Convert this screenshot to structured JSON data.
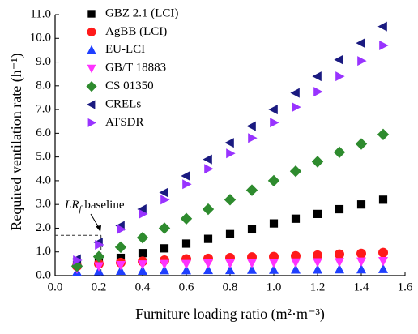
{
  "chart_data": {
    "type": "scatter",
    "x_label": "Furniture loading ratio (m²·m⁻³)",
    "y_label": "Required ventilation rate (h⁻¹)",
    "x": [
      0.1,
      0.2,
      0.3,
      0.4,
      0.5,
      0.6,
      0.7,
      0.8,
      0.9,
      1.0,
      1.1,
      1.2,
      1.3,
      1.4,
      1.5
    ],
    "series": [
      {
        "name": "GBZ 2.1 (LCI)",
        "color": "#000000",
        "marker": "square",
        "values": [
          0.45,
          0.6,
          0.75,
          0.95,
          1.15,
          1.35,
          1.55,
          1.75,
          1.95,
          2.2,
          2.4,
          2.6,
          2.8,
          3.0,
          3.2
        ]
      },
      {
        "name": "AgBB (LCI)",
        "color": "#ff1a1a",
        "marker": "circle",
        "values": [
          0.4,
          0.5,
          0.55,
          0.6,
          0.65,
          0.7,
          0.72,
          0.75,
          0.78,
          0.8,
          0.83,
          0.86,
          0.9,
          0.93,
          0.97
        ]
      },
      {
        "name": "EU-LCI",
        "color": "#1f3fff",
        "marker": "triangle-up",
        "values": [
          0.15,
          0.18,
          0.2,
          0.2,
          0.22,
          0.22,
          0.23,
          0.23,
          0.24,
          0.24,
          0.25,
          0.25,
          0.26,
          0.26,
          0.27
        ]
      },
      {
        "name": "GB/T 18883",
        "color": "#ff33ff",
        "marker": "triangle-down",
        "values": [
          0.3,
          0.4,
          0.45,
          0.48,
          0.5,
          0.5,
          0.52,
          0.53,
          0.54,
          0.55,
          0.56,
          0.57,
          0.58,
          0.6,
          0.62
        ]
      },
      {
        "name": "CS 01350",
        "color": "#2e8b2e",
        "marker": "diamond",
        "values": [
          0.4,
          0.8,
          1.2,
          1.6,
          2.0,
          2.4,
          2.8,
          3.2,
          3.6,
          4.0,
          4.4,
          4.8,
          5.2,
          5.55,
          5.95
        ]
      },
      {
        "name": "CRELs",
        "color": "#1a1a80",
        "marker": "triangle-left",
        "values": [
          0.7,
          1.4,
          2.1,
          2.8,
          3.5,
          4.2,
          4.9,
          5.6,
          6.3,
          7.0,
          7.7,
          8.4,
          9.1,
          9.8,
          10.5
        ]
      },
      {
        "name": "ATSDR",
        "color": "#9933ff",
        "marker": "triangle-right",
        "values": [
          0.65,
          1.3,
          1.95,
          2.6,
          3.2,
          3.85,
          4.5,
          5.15,
          5.8,
          6.45,
          7.1,
          7.75,
          8.4,
          9.05,
          9.7
        ]
      }
    ],
    "xlim": [
      0,
      1.6
    ],
    "ylim": [
      0,
      11
    ],
    "xticks": [
      {
        "value": 0,
        "label": "0.0"
      },
      0.2,
      0.4,
      0.6,
      0.8,
      {
        "value": 1,
        "label": "1.0"
      },
      1.2,
      1.4,
      1.6
    ],
    "yticks": [
      {
        "value": 0,
        "label": "0.0"
      },
      {
        "value": 1,
        "label": "1.0"
      },
      {
        "value": 2,
        "label": "2.0"
      },
      {
        "value": 3,
        "label": "3.0"
      },
      {
        "value": 4,
        "label": "4.0"
      },
      {
        "value": 5,
        "label": "5.0"
      },
      {
        "value": 6,
        "label": "6.0"
      },
      {
        "value": 7,
        "label": "7.0"
      },
      {
        "value": 8,
        "label": "8.0"
      },
      {
        "value": 9,
        "label": "9.0"
      },
      {
        "value": 10,
        "label": "10.0"
      },
      {
        "value": 11,
        "label": "11.0"
      }
    ],
    "annotation": {
      "text": "LR",
      "subscript": "f",
      "rest": " baseline",
      "x": 0.21,
      "y": 1.7
    }
  }
}
